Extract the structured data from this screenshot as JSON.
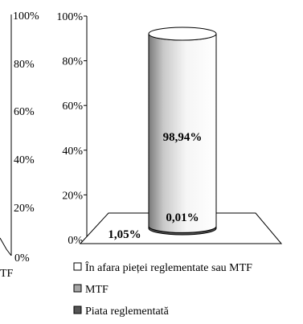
{
  "chart_data": {
    "type": "bar",
    "style": "3d-cylinder-stacked",
    "ylim": [
      0,
      100
    ],
    "y_ticks": [
      "0%",
      "20%",
      "40%",
      "60%",
      "80%",
      "100%"
    ],
    "series": [
      {
        "name": "Piata reglementată",
        "values": [
          1.05
        ],
        "label": "1,05%",
        "color": "#555555"
      },
      {
        "name": "MTF",
        "values": [
          0.01
        ],
        "label": "0,01%",
        "color": "#a6a6a6"
      },
      {
        "name": "În afara pieței reglementate sau MTF",
        "values": [
          98.94
        ],
        "label": "98,94%",
        "color": "#ffffff"
      }
    ],
    "legend": {
      "placement": "bottom",
      "items": [
        {
          "label": "În afara pieței reglementate sau MTF",
          "color": "#ffffff"
        },
        {
          "label": "MTF",
          "color": "#a6a6a6"
        },
        {
          "label": "Piata reglementată",
          "color": "#555555"
        }
      ]
    },
    "grid": false
  },
  "left_fragment": {
    "ticks": [
      "100%",
      "80%",
      "60%",
      "40%",
      "20%",
      "0%"
    ],
    "legend_tail": "TF"
  }
}
